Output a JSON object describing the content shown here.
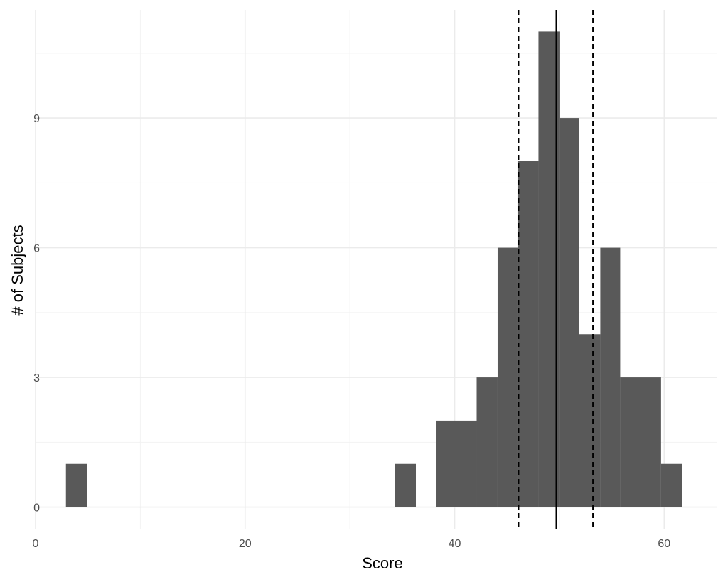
{
  "chart_data": {
    "type": "bar",
    "title": "",
    "xlabel": "Score",
    "ylabel": "# of Subjects",
    "xlim": [
      0,
      65
    ],
    "ylim": [
      -0.5,
      11.5
    ],
    "x_ticks": [
      0,
      20,
      40,
      60
    ],
    "y_ticks": [
      0,
      3,
      6,
      9
    ],
    "grid": true,
    "bar_color": "#595959",
    "bins": [
      {
        "x0": 2.9,
        "x1": 4.9,
        "count": 1
      },
      {
        "x0": 34.3,
        "x1": 36.3,
        "count": 1
      },
      {
        "x0": 38.2,
        "x1": 42.1,
        "count": 2
      },
      {
        "x0": 42.1,
        "x1": 44.1,
        "count": 3
      },
      {
        "x0": 44.1,
        "x1": 46.0,
        "count": 6
      },
      {
        "x0": 46.0,
        "x1": 48.0,
        "count": 8
      },
      {
        "x0": 48.0,
        "x1": 50.0,
        "count": 11
      },
      {
        "x0": 50.0,
        "x1": 51.9,
        "count": 9
      },
      {
        "x0": 51.9,
        "x1": 53.9,
        "count": 4
      },
      {
        "x0": 53.9,
        "x1": 55.8,
        "count": 6
      },
      {
        "x0": 55.8,
        "x1": 59.7,
        "count": 3
      },
      {
        "x0": 59.7,
        "x1": 61.7,
        "count": 1
      }
    ],
    "reference_lines": [
      {
        "x": 49.7,
        "style": "solid"
      },
      {
        "x": 46.1,
        "style": "dashed"
      },
      {
        "x": 53.2,
        "style": "dashed"
      }
    ]
  }
}
